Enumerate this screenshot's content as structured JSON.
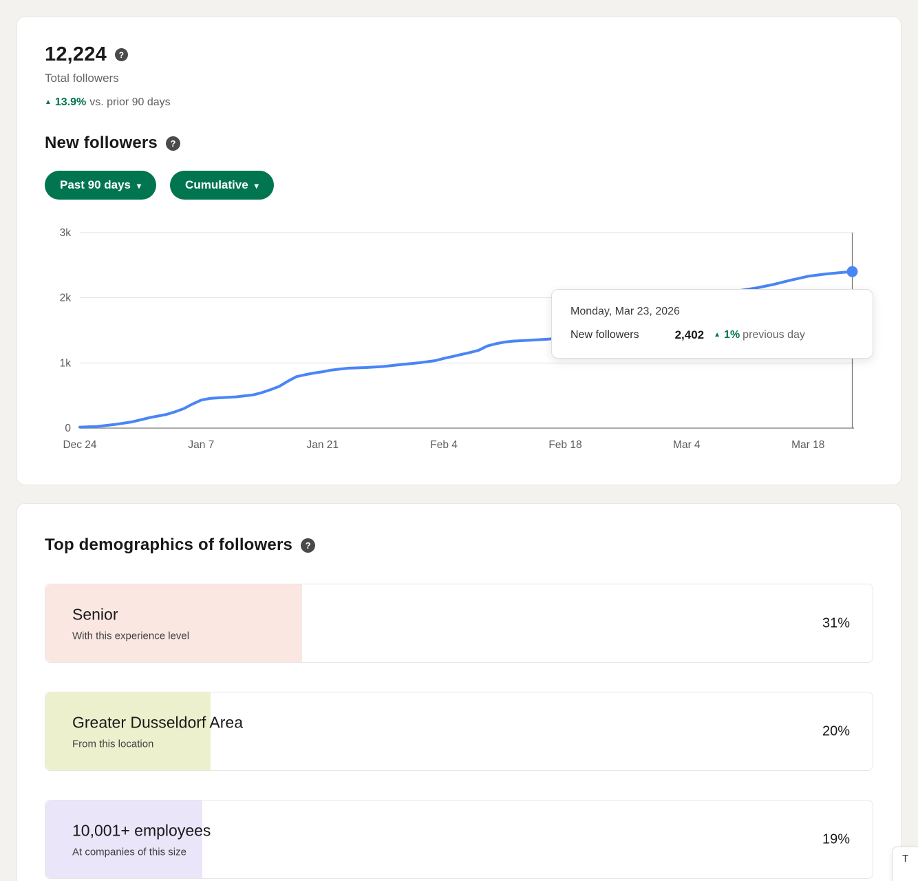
{
  "summary": {
    "total": "12,224",
    "total_label": "Total followers",
    "delta": "13.9%",
    "delta_suffix": "vs. prior 90 days"
  },
  "new_followers": {
    "title": "New followers",
    "filters": [
      {
        "label": "Past 90 days"
      },
      {
        "label": "Cumulative"
      }
    ]
  },
  "icons": {
    "help": "?",
    "chevron_down": "▾",
    "triangle_up": "▲"
  },
  "colors": {
    "accent_green": "#01754f",
    "chart_line": "#4a85f6",
    "page_bg": "#f4f2ee"
  },
  "chart_data": {
    "type": "line",
    "title": "New followers, cumulative, past 90 days",
    "xlabel": "",
    "ylabel": "",
    "ylim": [
      0,
      3000
    ],
    "x_max": 89.3,
    "grid": "horizontal",
    "y_ticks": [
      {
        "label": "3k",
        "value": 3000
      },
      {
        "label": "2k",
        "value": 2000
      },
      {
        "label": "1k",
        "value": 1000
      },
      {
        "label": "0",
        "value": 0
      }
    ],
    "x_ticks": [
      {
        "label": "Dec 24",
        "day": 0
      },
      {
        "label": "Jan 7",
        "day": 14
      },
      {
        "label": "Jan 21",
        "day": 28
      },
      {
        "label": "Feb 4",
        "day": 42
      },
      {
        "label": "Feb 18",
        "day": 56
      },
      {
        "label": "Mar 4",
        "day": 70
      },
      {
        "label": "Mar 18",
        "day": 84
      }
    ],
    "marker": {
      "day": 89.1,
      "value": 2402,
      "date": "Monday, Mar 23, 2026"
    },
    "series": [
      {
        "name": "New followers (cumulative)",
        "color": "#4a85f6",
        "points": [
          [
            0,
            15
          ],
          [
            2,
            25
          ],
          [
            4,
            55
          ],
          [
            6,
            95
          ],
          [
            8,
            160
          ],
          [
            10,
            210
          ],
          [
            11,
            250
          ],
          [
            12,
            300
          ],
          [
            13,
            370
          ],
          [
            14,
            430
          ],
          [
            15,
            455
          ],
          [
            16,
            465
          ],
          [
            18,
            480
          ],
          [
            20,
            510
          ],
          [
            21,
            545
          ],
          [
            22,
            590
          ],
          [
            23,
            640
          ],
          [
            24,
            720
          ],
          [
            25,
            790
          ],
          [
            26,
            820
          ],
          [
            27,
            845
          ],
          [
            28,
            865
          ],
          [
            29,
            890
          ],
          [
            30,
            905
          ],
          [
            31,
            920
          ],
          [
            33,
            930
          ],
          [
            35,
            945
          ],
          [
            37,
            975
          ],
          [
            39,
            1000
          ],
          [
            41,
            1035
          ],
          [
            42,
            1070
          ],
          [
            43,
            1100
          ],
          [
            44,
            1130
          ],
          [
            45,
            1160
          ],
          [
            46,
            1195
          ],
          [
            47,
            1260
          ],
          [
            48,
            1295
          ],
          [
            49,
            1320
          ],
          [
            50,
            1335
          ],
          [
            52,
            1350
          ],
          [
            54,
            1365
          ],
          [
            56,
            1395
          ],
          [
            58,
            1450
          ],
          [
            60,
            1520
          ],
          [
            62,
            1600
          ],
          [
            64,
            1680
          ],
          [
            66,
            1760
          ],
          [
            68,
            1840
          ],
          [
            70,
            1915
          ],
          [
            72,
            1990
          ],
          [
            74,
            2060
          ],
          [
            76,
            2110
          ],
          [
            78,
            2150
          ],
          [
            80,
            2205
          ],
          [
            82,
            2270
          ],
          [
            84,
            2330
          ],
          [
            86,
            2365
          ],
          [
            88,
            2390
          ],
          [
            89.1,
            2402
          ]
        ]
      }
    ]
  },
  "tooltip": {
    "date": "Monday, Mar 23, 2026",
    "label": "New followers",
    "value": "2,402",
    "delta": "1%",
    "suffix": "previous day"
  },
  "demographics": {
    "title": "Top demographics of followers",
    "rows": [
      {
        "label": "Senior",
        "sublabel": "With this experience level",
        "value": "31%",
        "pct": 31,
        "color": "#fbe7e2"
      },
      {
        "label": "Greater Dusseldorf Area",
        "sublabel": "From this location",
        "value": "20%",
        "pct": 20,
        "color": "#edf0cd"
      },
      {
        "label": "10,001+ employees",
        "sublabel": "At companies of this size",
        "value": "19%",
        "pct": 19,
        "color": "#eae5f8"
      }
    ]
  },
  "floating": {
    "label": "T"
  }
}
